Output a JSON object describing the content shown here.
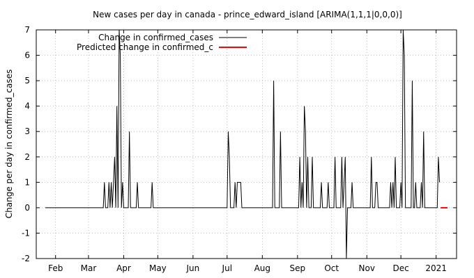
{
  "chart_data": {
    "type": "line",
    "title": "New cases per day in canada - prince_edward_island [ARIMA(1,1,1|0,0,0)]",
    "xlabel": "",
    "ylabel": "Change per day in confirmed_cases",
    "ylim": [
      -2,
      7
    ],
    "yticks": [
      -2,
      -1,
      0,
      1,
      2,
      3,
      4,
      5,
      6,
      7
    ],
    "xlim": [
      "2020-01-15",
      "2021-01-19"
    ],
    "xticks": [
      {
        "label": "Feb",
        "date": "2020-02-01"
      },
      {
        "label": "Mar",
        "date": "2020-03-01"
      },
      {
        "label": "Apr",
        "date": "2020-04-01"
      },
      {
        "label": "May",
        "date": "2020-05-01"
      },
      {
        "label": "Jun",
        "date": "2020-06-01"
      },
      {
        "label": "Jul",
        "date": "2020-07-01"
      },
      {
        "label": "Aug",
        "date": "2020-08-01"
      },
      {
        "label": "Sep",
        "date": "2020-09-01"
      },
      {
        "label": "Oct",
        "date": "2020-10-01"
      },
      {
        "label": "Nov",
        "date": "2020-11-01"
      },
      {
        "label": "Dec",
        "date": "2020-12-01"
      },
      {
        "label": "2021",
        "date": "2021-01-01"
      }
    ],
    "grid": true,
    "legend": "top-left",
    "series": [
      {
        "name": "Change in confirmed_cases",
        "color": "#000000",
        "points": [
          [
            "2020-01-23",
            0
          ],
          [
            "2020-03-14",
            0
          ],
          [
            "2020-03-15",
            1
          ],
          [
            "2020-03-16",
            0
          ],
          [
            "2020-03-18",
            0
          ],
          [
            "2020-03-19",
            1
          ],
          [
            "2020-03-20",
            0
          ],
          [
            "2020-03-21",
            1
          ],
          [
            "2020-03-22",
            0
          ],
          [
            "2020-03-24",
            2
          ],
          [
            "2020-03-25",
            0
          ],
          [
            "2020-03-26",
            4
          ],
          [
            "2020-03-27",
            0
          ],
          [
            "2020-03-28",
            7
          ],
          [
            "2020-03-29",
            6
          ],
          [
            "2020-03-30",
            0
          ],
          [
            "2020-03-31",
            1
          ],
          [
            "2020-04-01",
            0
          ],
          [
            "2020-04-05",
            0
          ],
          [
            "2020-04-06",
            3
          ],
          [
            "2020-04-07",
            0
          ],
          [
            "2020-04-12",
            0
          ],
          [
            "2020-04-13",
            1
          ],
          [
            "2020-04-14",
            0
          ],
          [
            "2020-04-25",
            0
          ],
          [
            "2020-04-26",
            1
          ],
          [
            "2020-04-27",
            0
          ],
          [
            "2020-07-01",
            0
          ],
          [
            "2020-07-02",
            3
          ],
          [
            "2020-07-03",
            2
          ],
          [
            "2020-07-04",
            0
          ],
          [
            "2020-07-07",
            0
          ],
          [
            "2020-07-08",
            1
          ],
          [
            "2020-07-09",
            0
          ],
          [
            "2020-07-10",
            1
          ],
          [
            "2020-07-13",
            1
          ],
          [
            "2020-07-14",
            0
          ],
          [
            "2020-08-10",
            0
          ],
          [
            "2020-08-11",
            5
          ],
          [
            "2020-08-12",
            0
          ],
          [
            "2020-08-16",
            0
          ],
          [
            "2020-08-17",
            3
          ],
          [
            "2020-08-18",
            0
          ],
          [
            "2020-09-02",
            0
          ],
          [
            "2020-09-03",
            2
          ],
          [
            "2020-09-04",
            0
          ],
          [
            "2020-09-05",
            1
          ],
          [
            "2020-09-06",
            0
          ],
          [
            "2020-09-07",
            4
          ],
          [
            "2020-09-08",
            3
          ],
          [
            "2020-09-09",
            0
          ],
          [
            "2020-09-10",
            2
          ],
          [
            "2020-09-11",
            0
          ],
          [
            "2020-09-13",
            0
          ],
          [
            "2020-09-14",
            2
          ],
          [
            "2020-09-15",
            0
          ],
          [
            "2020-09-21",
            0
          ],
          [
            "2020-09-22",
            1
          ],
          [
            "2020-09-23",
            0
          ],
          [
            "2020-09-27",
            0
          ],
          [
            "2020-09-28",
            1
          ],
          [
            "2020-09-29",
            0
          ],
          [
            "2020-10-03",
            0
          ],
          [
            "2020-10-04",
            2
          ],
          [
            "2020-10-05",
            0
          ],
          [
            "2020-10-09",
            0
          ],
          [
            "2020-10-10",
            2
          ],
          [
            "2020-10-11",
            0
          ],
          [
            "2020-10-12",
            1
          ],
          [
            "2020-10-13",
            2
          ],
          [
            "2020-10-14",
            -2
          ],
          [
            "2020-10-15",
            0
          ],
          [
            "2020-10-18",
            0
          ],
          [
            "2020-10-19",
            1
          ],
          [
            "2020-10-20",
            0
          ],
          [
            "2020-11-04",
            0
          ],
          [
            "2020-11-05",
            2
          ],
          [
            "2020-11-06",
            0
          ],
          [
            "2020-11-08",
            0
          ],
          [
            "2020-11-09",
            1
          ],
          [
            "2020-11-10",
            1
          ],
          [
            "2020-11-11",
            0
          ],
          [
            "2020-11-21",
            0
          ],
          [
            "2020-11-22",
            1
          ],
          [
            "2020-11-23",
            0
          ],
          [
            "2020-11-24",
            1
          ],
          [
            "2020-11-25",
            0
          ],
          [
            "2020-11-26",
            2
          ],
          [
            "2020-11-27",
            0
          ],
          [
            "2020-11-30",
            0
          ],
          [
            "2020-12-01",
            1
          ],
          [
            "2020-12-02",
            0
          ],
          [
            "2020-12-03",
            7
          ],
          [
            "2020-12-04",
            6
          ],
          [
            "2020-12-05",
            0
          ],
          [
            "2020-12-10",
            0
          ],
          [
            "2020-12-11",
            5
          ],
          [
            "2020-12-12",
            0
          ],
          [
            "2020-12-13",
            0
          ],
          [
            "2020-12-14",
            1
          ],
          [
            "2020-12-15",
            0
          ],
          [
            "2020-12-18",
            0
          ],
          [
            "2020-12-19",
            1
          ],
          [
            "2020-12-20",
            0
          ],
          [
            "2020-12-21",
            3
          ],
          [
            "2020-12-22",
            0
          ],
          [
            "2021-01-02",
            0
          ],
          [
            "2021-01-03",
            2
          ],
          [
            "2021-01-04",
            1
          ]
        ]
      },
      {
        "name": "Predicted change in confirmed_c",
        "color": "#ff0000",
        "points": [
          [
            "2021-01-05",
            0
          ],
          [
            "2021-01-11",
            0
          ]
        ]
      }
    ]
  }
}
